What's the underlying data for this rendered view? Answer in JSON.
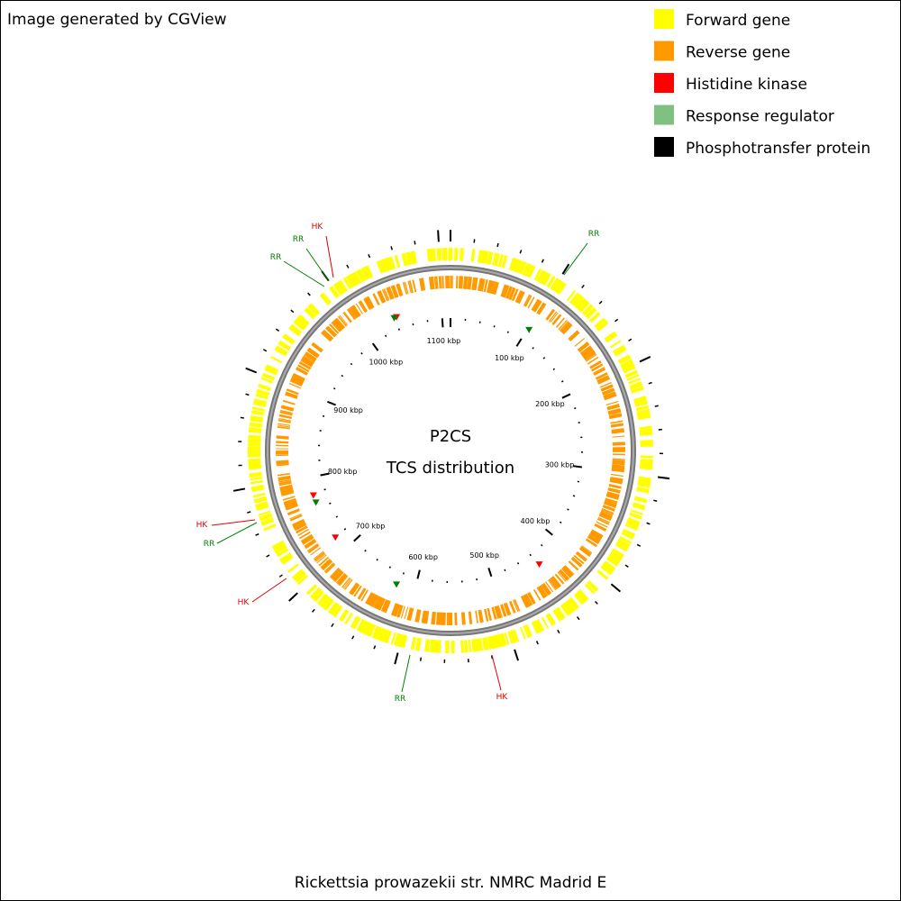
{
  "header": {
    "title": "Image generated by CGView"
  },
  "legend": [
    {
      "label": "Forward gene",
      "color": "#ffff00"
    },
    {
      "label": "Reverse gene",
      "color": "#ff9900"
    },
    {
      "label": "Histidine kinase",
      "color": "#ff0000"
    },
    {
      "label": "Response regulator",
      "color": "#80c080"
    },
    {
      "label": "Phosphotransfer protein",
      "color": "#000000"
    }
  ],
  "center": {
    "line1": "P2CS",
    "line2": "TCS distribution"
  },
  "scale_labels": [
    "100 kbp",
    "200 kbp",
    "300 kbp",
    "400 kbp",
    "500 kbp",
    "600 kbp",
    "700 kbp",
    "800 kbp",
    "900 kbp",
    "1000 kbp",
    "1100 kbp"
  ],
  "features": [
    {
      "label": "HK"
    },
    {
      "label": "RR"
    },
    {
      "label": "RR"
    },
    {
      "label": "RR"
    },
    {
      "label": "HK"
    },
    {
      "label": "RR"
    },
    {
      "label": "HK"
    },
    {
      "label": "RR"
    },
    {
      "label": "HK"
    }
  ],
  "footer": {
    "organism": "Rickettsia prowazekii str. NMRC Madrid E"
  }
}
